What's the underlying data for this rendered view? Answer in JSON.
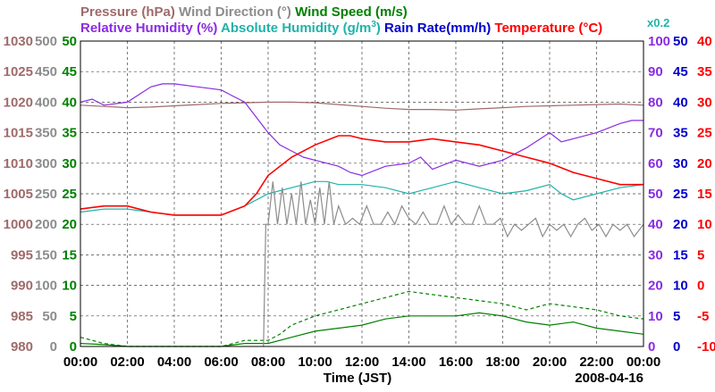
{
  "chart_data": {
    "type": "line",
    "legend_row1": [
      {
        "text": "Pressure (hPa)",
        "color": "#a06a6a"
      },
      {
        "text": "Wind Direction (°)",
        "color": "#8c8c8c"
      },
      {
        "text": "Wind Speed (m/s)",
        "color": "#008000"
      }
    ],
    "legend_row2": [
      {
        "text": "Relative Humidity (%)",
        "color": "#8a2be2"
      },
      {
        "text": "Absolute Humidity (g/m",
        "sup": "3",
        "tail": ")",
        "color": "#20b2aa"
      },
      {
        "text": "Rain Rate(mm/h)",
        "color": "#0000cd"
      },
      {
        "text": "Temperature (°C)",
        "color": "#ff0000"
      }
    ],
    "rain_scale_note": "x0.2",
    "xlabel": "Time (JST)",
    "date": "2008-04-16",
    "x_ticks": [
      "00:00",
      "02:00",
      "04:00",
      "06:00",
      "08:00",
      "10:00",
      "12:00",
      "14:00",
      "16:00",
      "18:00",
      "20:00",
      "22:00",
      "00:00"
    ],
    "grid": true,
    "axes": {
      "pressure": {
        "color": "#a06a6a",
        "ticks": [
          "980",
          "985",
          "990",
          "995",
          "1000",
          "1005",
          "1010",
          "1015",
          "1020",
          "1025",
          "1030"
        ],
        "range": [
          980,
          1030
        ]
      },
      "wind_direction": {
        "color": "#8c8c8c",
        "ticks": [
          "0",
          "50",
          "100",
          "150",
          "200",
          "250",
          "300",
          "350",
          "400",
          "450",
          "500"
        ],
        "range": [
          0,
          500
        ]
      },
      "wind_speed": {
        "color": "#008000",
        "ticks": [
          "0",
          "5",
          "10",
          "15",
          "20",
          "25",
          "30",
          "35",
          "40",
          "45",
          "50"
        ],
        "range": [
          0,
          50
        ]
      },
      "humidity": {
        "color": "#8a2be2",
        "ticks": [
          "0",
          "10",
          "20",
          "30",
          "40",
          "50",
          "60",
          "70",
          "80",
          "90",
          "100"
        ],
        "range": [
          0,
          100
        ]
      },
      "rain": {
        "color": "#0000cd",
        "ticks": [
          "0",
          "5",
          "10",
          "15",
          "20",
          "25",
          "30",
          "35",
          "40",
          "45",
          "50"
        ],
        "range": [
          0,
          50
        ]
      },
      "temperature": {
        "color": "#ff0000",
        "ticks": [
          "-10",
          "-5",
          "0",
          "5",
          "10",
          "15",
          "20",
          "25",
          "30",
          "35",
          "40"
        ],
        "range": [
          -10,
          40
        ]
      }
    },
    "series": [
      {
        "name": "Pressure (hPa)",
        "axis": "pressure",
        "style": "solid",
        "x": [
          0,
          1,
          2,
          3,
          4,
          5,
          6,
          7,
          8,
          9,
          10,
          11,
          12,
          13,
          14,
          15,
          16,
          17,
          18,
          19,
          20,
          21,
          22,
          23,
          24
        ],
        "y": [
          1019.5,
          1019.3,
          1019.1,
          1019.2,
          1019.4,
          1019.6,
          1019.8,
          1019.9,
          1020.0,
          1020.0,
          1019.9,
          1019.6,
          1019.3,
          1019.0,
          1018.8,
          1018.8,
          1018.7,
          1018.9,
          1019.1,
          1019.3,
          1019.4,
          1019.5,
          1019.6,
          1019.7,
          1019.5
        ]
      },
      {
        "name": "Relative Humidity (%)",
        "axis": "humidity",
        "style": "solid",
        "x": [
          0,
          0.5,
          1,
          2,
          3,
          3.5,
          4,
          5,
          6,
          6.5,
          7,
          7.5,
          8,
          8.5,
          9,
          9.5,
          10,
          10.5,
          11,
          11.5,
          12,
          13,
          14,
          14.5,
          15,
          16,
          17,
          18,
          19,
          20,
          20.5,
          21,
          22,
          23,
          23.5,
          24
        ],
        "y": [
          80,
          81,
          79,
          80,
          85,
          86,
          86,
          85,
          84,
          82,
          80,
          75,
          70,
          66,
          64,
          62,
          61,
          60,
          59,
          57,
          56,
          59,
          60,
          62,
          58,
          61,
          59,
          61,
          65,
          70,
          67,
          68,
          70,
          73,
          74,
          74
        ]
      },
      {
        "name": "Absolute Humidity (g/m3)",
        "axis": "rain",
        "style": "solid",
        "x": [
          0,
          1,
          2,
          3,
          4,
          5,
          6,
          7,
          8,
          9,
          10,
          10.5,
          11,
          12,
          13,
          14,
          14.5,
          15,
          16,
          17,
          18,
          19,
          20,
          20.5,
          21,
          22,
          23,
          24
        ],
        "y": [
          22,
          22.5,
          22.5,
          22,
          21.5,
          21.5,
          21.5,
          23,
          25,
          26,
          27,
          27,
          26.5,
          26.5,
          26,
          25,
          25.5,
          26,
          27,
          26,
          25,
          25.5,
          26.5,
          25,
          24,
          25,
          26,
          26.5
        ]
      },
      {
        "name": "Temperature (°C)",
        "axis": "temperature",
        "style": "solid",
        "x": [
          0,
          1,
          2,
          3,
          4,
          5,
          6,
          7,
          7.5,
          8,
          9,
          10,
          11,
          11.5,
          12,
          13,
          14,
          15,
          16,
          17,
          18,
          19,
          20,
          21,
          22,
          23,
          24
        ],
        "y": [
          12.5,
          13,
          13,
          12,
          11.5,
          11.5,
          11.5,
          13,
          15,
          18,
          21,
          23,
          24.5,
          24.5,
          24,
          23.5,
          23.5,
          24,
          23.5,
          23,
          22,
          21,
          20,
          18.5,
          17.5,
          16.5,
          16.5
        ]
      },
      {
        "name": "Wind Speed (m/s)",
        "axis": "wind_speed",
        "style": "solid",
        "x": [
          0,
          1,
          2,
          3,
          4,
          5,
          6,
          7,
          8,
          9,
          10,
          11,
          12,
          13,
          14,
          15,
          16,
          17,
          18,
          19,
          20,
          21,
          22,
          23,
          24
        ],
        "y": [
          0.5,
          0.3,
          0,
          0,
          0,
          0,
          0,
          0.5,
          0.5,
          1.5,
          2.5,
          3,
          3.5,
          4.5,
          5,
          5,
          5,
          5.5,
          5,
          4,
          3.5,
          4,
          3,
          2.5,
          2
        ]
      },
      {
        "name": "Wind Speed gust (m/s)",
        "axis": "wind_speed",
        "style": "dashed",
        "x": [
          0,
          1,
          2,
          3,
          4,
          5,
          6,
          7,
          8,
          8.5,
          9,
          10,
          11,
          12,
          13,
          14,
          15,
          16,
          17,
          18,
          19,
          20,
          21,
          22,
          23,
          24
        ],
        "y": [
          1.5,
          0.5,
          0,
          0,
          0,
          0,
          0,
          1,
          1,
          2,
          3.5,
          5,
          6,
          7,
          8,
          9,
          8.5,
          8,
          7.5,
          7,
          6,
          7,
          6.5,
          6,
          5,
          4.5
        ]
      },
      {
        "name": "Wind Direction (°)",
        "axis": "wind_direction",
        "style": "solid",
        "x": [
          7.8,
          7.9,
          8.0,
          8.2,
          8.4,
          8.6,
          8.8,
          9.0,
          9.2,
          9.4,
          9.6,
          9.8,
          10.0,
          10.2,
          10.4,
          10.6,
          10.8,
          11.0,
          11.3,
          11.6,
          11.9,
          12.2,
          12.5,
          12.8,
          13.1,
          13.4,
          13.7,
          14.0,
          14.3,
          14.6,
          14.9,
          15.2,
          15.5,
          15.8,
          16.1,
          16.4,
          16.7,
          17.0,
          17.3,
          17.6,
          17.9,
          18.2,
          18.5,
          18.8,
          19.1,
          19.4,
          19.7,
          20.0,
          20.3,
          20.6,
          20.9,
          21.2,
          21.5,
          21.8,
          22.1,
          22.4,
          22.7,
          23.0,
          23.3,
          23.6,
          24.0
        ],
        "y": [
          0,
          200,
          200,
          270,
          200,
          260,
          200,
          250,
          200,
          270,
          200,
          240,
          200,
          260,
          200,
          270,
          200,
          230,
          200,
          210,
          200,
          230,
          200,
          200,
          220,
          200,
          230,
          210,
          200,
          220,
          200,
          200,
          230,
          200,
          215,
          200,
          200,
          230,
          200,
          200,
          210,
          180,
          200,
          190,
          200,
          210,
          180,
          200,
          190,
          200,
          180,
          200,
          210,
          190,
          200,
          180,
          200,
          190,
          200,
          180,
          200
        ]
      }
    ]
  }
}
